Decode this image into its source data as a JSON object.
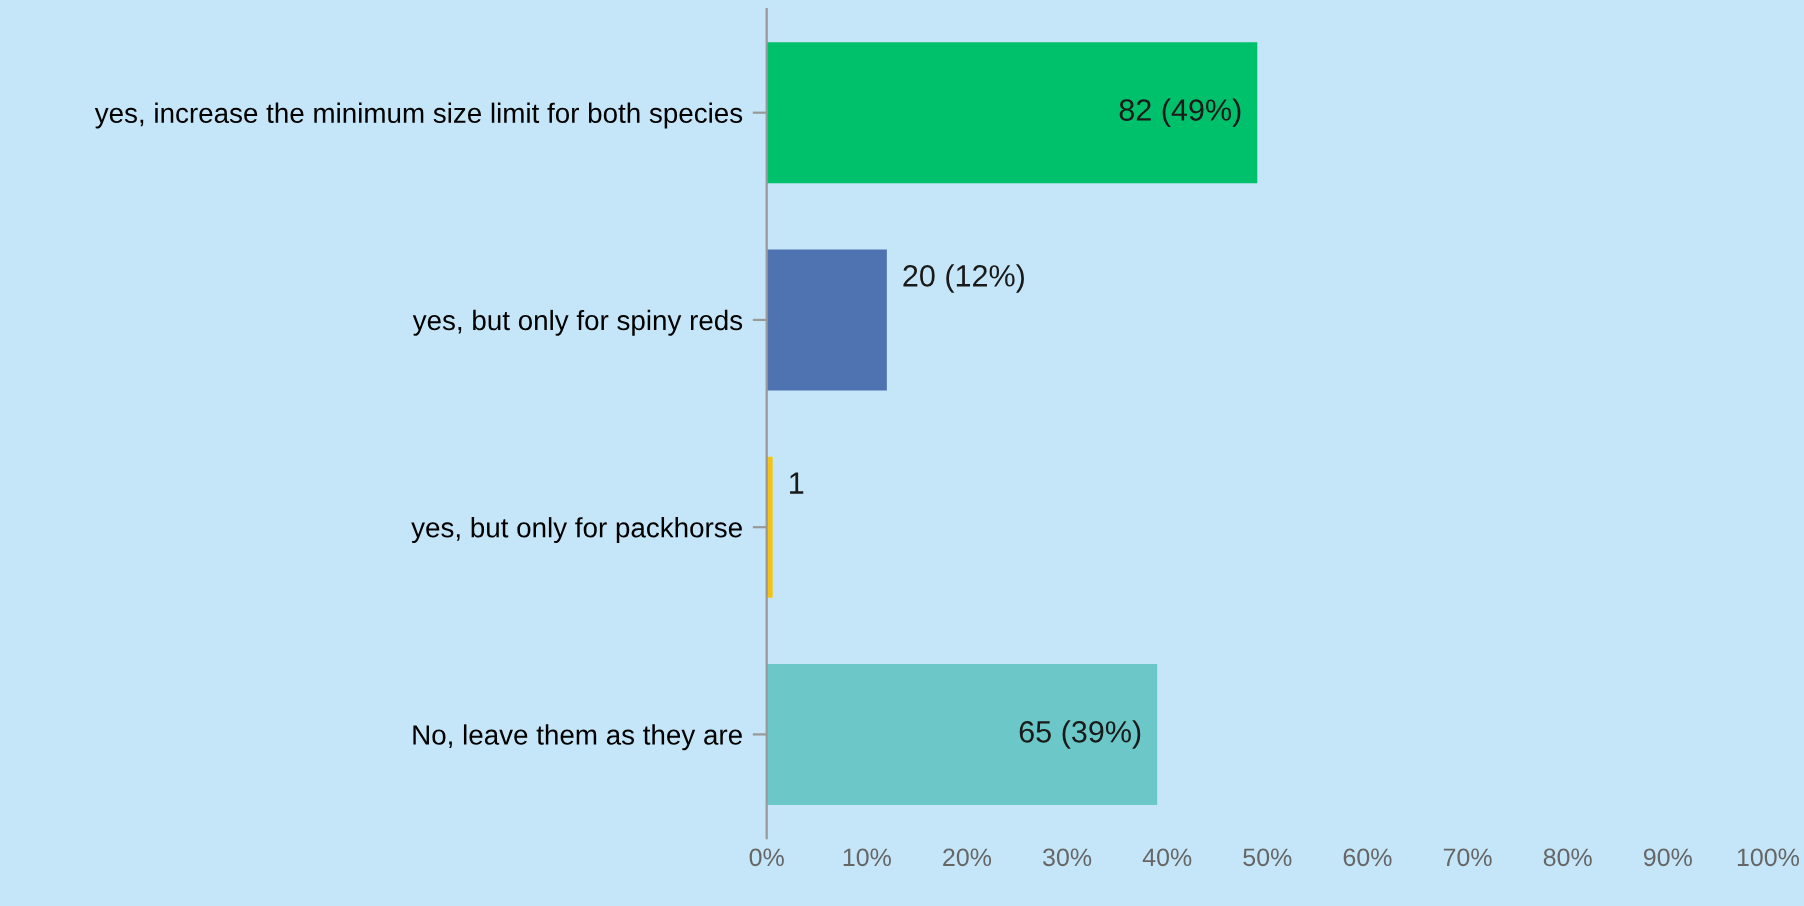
{
  "chart_data": {
    "type": "bar",
    "orientation": "horizontal",
    "categories": [
      "yes, increase the minimum size limit for both species",
      "yes, but only for spiny reds",
      "yes, but only for packhorse",
      "No, leave them as they are"
    ],
    "values": [
      49,
      12,
      0.6,
      39
    ],
    "colors": [
      "#00c16b",
      "#4f72b0",
      "#f2c417",
      "#6cc8c8"
    ],
    "value_labels": [
      "82 (49%)",
      "20 (12%)",
      "1",
      "65 (39%)"
    ],
    "xlim": [
      0,
      100
    ],
    "xticks": [
      {
        "value": 0,
        "label": "0%"
      },
      {
        "value": 10,
        "label": "10%"
      },
      {
        "value": 20,
        "label": "20%"
      },
      {
        "value": 30,
        "label": "30%"
      },
      {
        "value": 40,
        "label": "40%"
      },
      {
        "value": 50,
        "label": "50%"
      },
      {
        "value": 60,
        "label": "60%"
      },
      {
        "value": 70,
        "label": "70%"
      },
      {
        "value": 80,
        "label": "80%"
      },
      {
        "value": 90,
        "label": "90%"
      },
      {
        "value": 100,
        "label": "100%"
      }
    ],
    "grid": false,
    "legend": false
  }
}
